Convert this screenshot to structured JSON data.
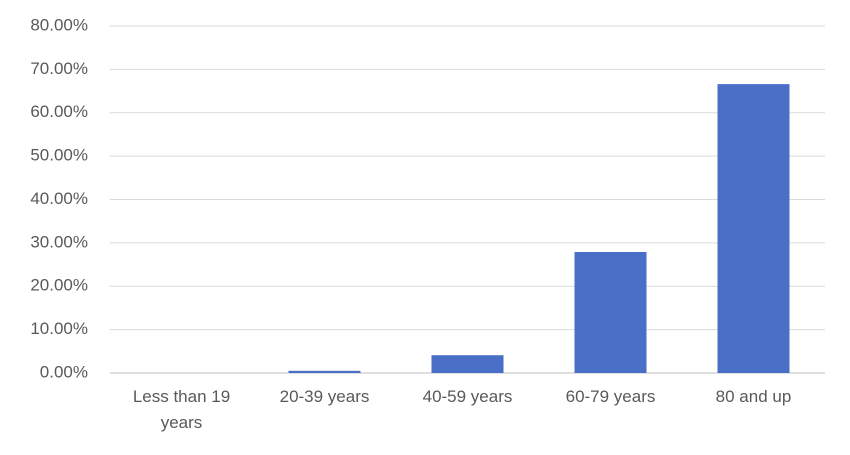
{
  "chart_data": {
    "type": "bar",
    "categories": [
      "Less than 19 years",
      "20-39 years",
      "40-59 years",
      "60-79 years",
      "80 and up"
    ],
    "values": [
      0,
      0.5,
      4.1,
      27.9,
      66.6
    ],
    "color": "#4a6fc7",
    "ylim": [
      0,
      80
    ],
    "yticks": [
      {
        "value": 0,
        "label": "0.00%"
      },
      {
        "value": 10,
        "label": "10.00%"
      },
      {
        "value": 20,
        "label": "20.00%"
      },
      {
        "value": 30,
        "label": "30.00%"
      },
      {
        "value": 40,
        "label": "40.00%"
      },
      {
        "value": 50,
        "label": "50.00%"
      },
      {
        "value": 60,
        "label": "60.00%"
      },
      {
        "value": 70,
        "label": "70.00%"
      },
      {
        "value": 80,
        "label": "80.00%"
      }
    ],
    "grid": true
  }
}
